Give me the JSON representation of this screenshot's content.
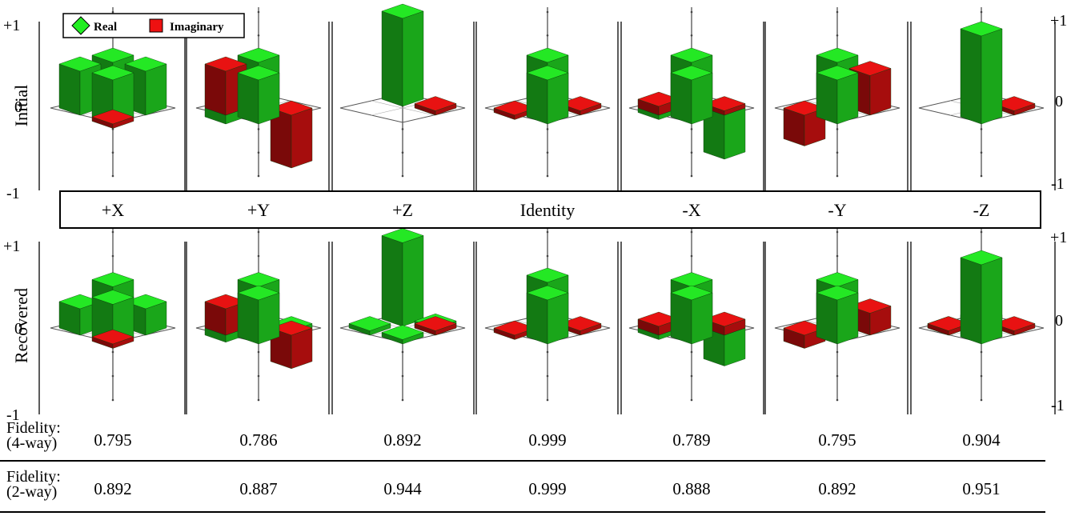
{
  "chart_data": {
    "type": "bar3d",
    "row_labels": [
      "Initial",
      "Recovered"
    ],
    "axis": {
      "zlim": [
        -1,
        1
      ],
      "ticks": [
        "+1",
        "0",
        "-1"
      ]
    },
    "legend": {
      "position": "top-left",
      "entries": [
        "Real",
        "Imaginary"
      ]
    },
    "colors": {
      "real": "#22dd22",
      "imaginary": "#dd1111"
    },
    "panels": [
      "+X",
      "+Y",
      "+Z",
      "Identity",
      "-X",
      "-Y",
      "-Z"
    ],
    "initial": [
      {
        "real": [
          0.5,
          0.5,
          0.5,
          0.5
        ],
        "imag": [
          0,
          0,
          0,
          -0.05
        ]
      },
      {
        "real": [
          0.5,
          -0.1,
          0.0,
          0.5
        ],
        "imag": [
          0,
          0.5,
          -0.6,
          0
        ]
      },
      {
        "real": [
          1.0,
          0,
          0,
          0
        ],
        "imag": [
          0,
          0,
          0.05,
          0
        ]
      },
      {
        "real": [
          0.5,
          0,
          0,
          0.5
        ],
        "imag": [
          0,
          -0.05,
          0.05,
          0
        ]
      },
      {
        "real": [
          0.5,
          -0.05,
          -0.5,
          0.5
        ],
        "imag": [
          0,
          0.1,
          0.05,
          0
        ]
      },
      {
        "real": [
          0.5,
          0,
          0,
          0.5
        ],
        "imag": [
          0,
          -0.35,
          0.45,
          0
        ]
      },
      {
        "real": [
          0,
          0,
          0,
          1.0
        ],
        "imag": [
          0,
          0,
          0.05,
          0
        ]
      }
    ],
    "recovered": [
      {
        "real": [
          0.45,
          0.3,
          0.3,
          0.45
        ],
        "imag": [
          0,
          0,
          0,
          -0.05
        ]
      },
      {
        "real": [
          0.45,
          -0.08,
          0.05,
          0.5
        ],
        "imag": [
          0,
          0.3,
          -0.38,
          0
        ]
      },
      {
        "real": [
          0.95,
          0.05,
          0.08,
          0.05
        ],
        "imag": [
          0,
          0,
          0.05,
          0
        ]
      },
      {
        "real": [
          0.5,
          0,
          0,
          0.5
        ],
        "imag": [
          0,
          -0.05,
          0.05,
          0
        ]
      },
      {
        "real": [
          0.45,
          -0.05,
          -0.35,
          0.5
        ],
        "imag": [
          0,
          0.1,
          0.1,
          0
        ]
      },
      {
        "real": [
          0.45,
          0,
          0,
          0.5
        ],
        "imag": [
          0,
          -0.15,
          0.25,
          0
        ]
      },
      {
        "real": [
          0.05,
          0.05,
          0,
          0.9
        ],
        "imag": [
          0,
          0.05,
          0.05,
          0
        ]
      }
    ]
  },
  "fidelity": {
    "rows": [
      {
        "label_line1": "Fidelity:",
        "label_line2": "(4-way)",
        "values": [
          "0.795",
          "0.786",
          "0.892",
          "0.999",
          "0.789",
          "0.795",
          "0.904"
        ]
      },
      {
        "label_line1": "Fidelity:",
        "label_line2": "(2-way)",
        "values": [
          "0.892",
          "0.887",
          "0.944",
          "0.999",
          "0.888",
          "0.892",
          "0.951"
        ]
      }
    ]
  }
}
